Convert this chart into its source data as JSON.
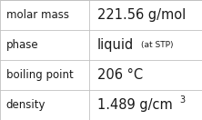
{
  "rows": [
    {
      "label": "molar mass",
      "value": "221.56 g/mol",
      "superscript": null,
      "note": null
    },
    {
      "label": "phase",
      "value": "liquid",
      "superscript": null,
      "note": "(at STP)"
    },
    {
      "label": "boiling point",
      "value": "206 °C",
      "superscript": null,
      "note": null
    },
    {
      "label": "density",
      "value": "1.489 g/cm",
      "superscript": "3",
      "note": null
    }
  ],
  "col_split": 0.44,
  "background_color": "#ffffff",
  "border_color": "#c0c0c0",
  "text_color": "#1a1a1a",
  "label_fontsize": 8.5,
  "value_fontsize": 10.5,
  "note_fontsize": 6.5,
  "super_fontsize": 7.0
}
